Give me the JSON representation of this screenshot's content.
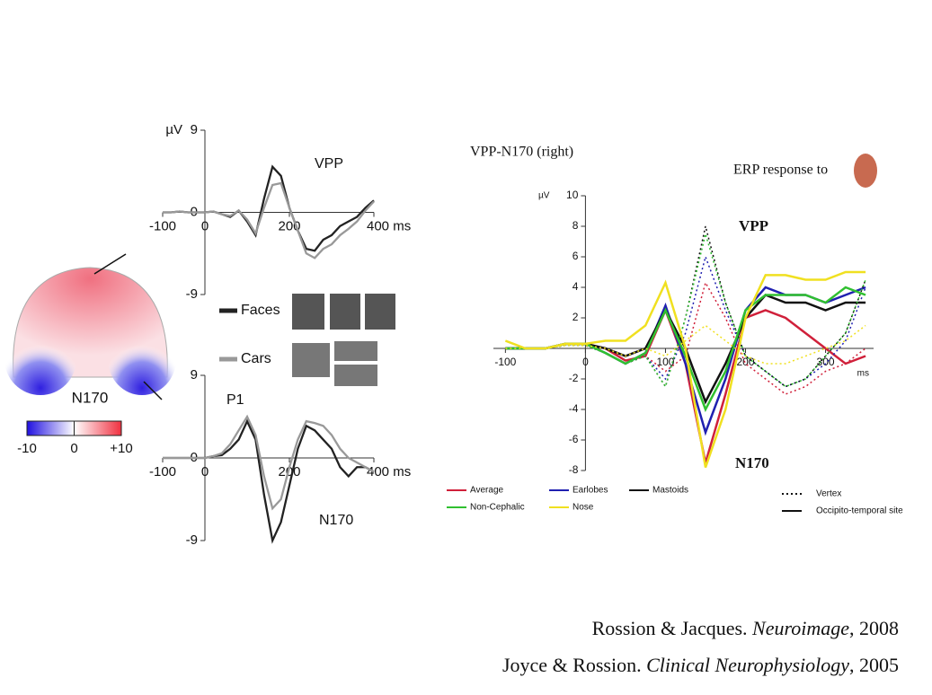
{
  "chart_data": [
    {
      "type": "line",
      "ylabel": "µV",
      "annotations": [
        "VPP"
      ],
      "x": [
        -100,
        -80,
        -60,
        -40,
        -20,
        0,
        20,
        40,
        60,
        80,
        100,
        120,
        140,
        160,
        180,
        200,
        220,
        240,
        260,
        280,
        300,
        320,
        340,
        360,
        380,
        400
      ],
      "xlim": [
        -100,
        400
      ],
      "xticks": [
        -100,
        0,
        200,
        {
          "value": 400,
          "label": "400 ms"
        }
      ],
      "ylim": [
        -9,
        9
      ],
      "yticks": [
        9,
        0,
        -9
      ],
      "series": [
        {
          "name": "Faces",
          "color": "#222222",
          "values": [
            0,
            0,
            0.1,
            0,
            0,
            0,
            0.1,
            -0.2,
            -0.5,
            0.2,
            -1,
            -2.5,
            1.5,
            5,
            4,
            0.5,
            -2,
            -4,
            -4.2,
            -3,
            -2.5,
            -1.5,
            -1,
            -0.5,
            0.5,
            1.3
          ]
        },
        {
          "name": "Cars",
          "color": "#999999",
          "values": [
            0,
            0,
            0.1,
            0,
            0,
            0,
            0.1,
            -0.2,
            -0.4,
            0.2,
            -0.8,
            -2.3,
            0.5,
            3,
            3.2,
            0.5,
            -2,
            -4.5,
            -5,
            -4,
            -3.5,
            -2.5,
            -1.8,
            -1,
            0.2,
            1.2
          ]
        }
      ]
    },
    {
      "type": "line",
      "annotations": [
        "P1",
        "N170"
      ],
      "x": [
        -100,
        -80,
        -60,
        -40,
        -20,
        0,
        20,
        40,
        60,
        80,
        100,
        120,
        140,
        160,
        180,
        200,
        220,
        240,
        260,
        280,
        300,
        320,
        340,
        360,
        380,
        400
      ],
      "xlim": [
        -100,
        400
      ],
      "xticks": [
        -100,
        0,
        200,
        {
          "value": 400,
          "label": "400 ms"
        }
      ],
      "ylim": [
        -9,
        9
      ],
      "yticks": [
        9,
        0,
        -9
      ],
      "series": [
        {
          "color": "#222222",
          "values": [
            0,
            0,
            0,
            0,
            0,
            0,
            0.2,
            0.3,
            1,
            2,
            4,
            2,
            -4,
            -9,
            -7,
            -3,
            1,
            3.5,
            3,
            2,
            1,
            -1,
            -2,
            -1,
            -1,
            -1.5
          ]
        },
        {
          "color": "#999999",
          "values": [
            0,
            0,
            0,
            0,
            0,
            0,
            0.2,
            0.5,
            1.5,
            3,
            4.5,
            2.5,
            -2,
            -5.5,
            -4.5,
            -1,
            2,
            4,
            3.8,
            3.5,
            2.5,
            1,
            0,
            -0.5,
            -1,
            -1.5
          ]
        }
      ]
    },
    {
      "type": "line",
      "title": "VPP-N170 (right)",
      "note": "ERP response to",
      "ylabel": "µV",
      "xlabel": "ms",
      "annotations": [
        "VPP",
        "N170"
      ],
      "x": [
        -100,
        -75,
        -50,
        -25,
        0,
        25,
        50,
        75,
        100,
        125,
        150,
        175,
        200,
        225,
        250,
        275,
        300,
        325,
        350
      ],
      "xlim": [
        -115,
        360
      ],
      "xticks": [
        -100,
        0,
        100,
        200,
        300
      ],
      "ylim": [
        -8,
        10
      ],
      "yticks": [
        10,
        8,
        6,
        4,
        2,
        -2,
        -4,
        -6,
        -8
      ],
      "line_styles": [
        {
          "name": "Vertex",
          "dash": "2,3"
        },
        {
          "name": "Occipito-temporal site",
          "dash": "none"
        }
      ],
      "series": [
        {
          "name": "Average",
          "color": "#d0203a",
          "values": [
            0,
            0,
            0,
            0.3,
            0.3,
            0,
            -0.8,
            -0.5,
            2.5,
            -1,
            -7.5,
            -3,
            2,
            2.5,
            2,
            1,
            0,
            -1,
            -0.5
          ],
          "vertex": [
            0,
            0,
            0,
            0.2,
            0.2,
            -0.3,
            -1,
            -0.5,
            -1.5,
            -0.5,
            4.3,
            2,
            -1,
            -2,
            -3,
            -2.5,
            -1.5,
            -1,
            0
          ]
        },
        {
          "name": "Earlobes",
          "color": "#2020b0",
          "values": [
            0,
            0,
            0,
            0.3,
            0.3,
            -0.3,
            -1,
            -0.3,
            2.8,
            -1,
            -5.5,
            -2,
            2.5,
            4,
            3.5,
            3.5,
            3,
            3.5,
            4
          ],
          "vertex": [
            0,
            0,
            0,
            0.2,
            0.2,
            -0.3,
            -1,
            -0.5,
            -2,
            1,
            6,
            2.5,
            -0.5,
            -1.5,
            -2.5,
            -2,
            -1,
            0.5,
            4
          ]
        },
        {
          "name": "Mastoids",
          "color": "#111111",
          "values": [
            0,
            0,
            0,
            0.3,
            0.3,
            0,
            -0.5,
            0,
            2.5,
            0,
            -3.5,
            -1,
            2,
            3.5,
            3,
            3,
            2.5,
            3,
            3
          ],
          "vertex": [
            0,
            0,
            0,
            0.2,
            0.2,
            -0.3,
            -1,
            -0.5,
            -2.5,
            2,
            8,
            3,
            -0.5,
            -1.5,
            -2.5,
            -2,
            -0.5,
            1,
            4.5
          ]
        },
        {
          "name": "Non-Cephalic",
          "color": "#30c030",
          "values": [
            0,
            0,
            0,
            0.3,
            0.3,
            -0.3,
            -1,
            -0.3,
            2.5,
            -0.5,
            -4,
            -1.5,
            2.5,
            3.5,
            3.5,
            3.5,
            3,
            4,
            3.5
          ],
          "vertex": [
            0,
            0,
            0,
            0.2,
            0.2,
            -0.3,
            -1,
            -0.5,
            -2.5,
            2,
            7.5,
            3,
            -0.5,
            -1.5,
            -2.5,
            -2,
            -0.5,
            1,
            4.5
          ]
        },
        {
          "name": "Nose",
          "color": "#f0e020",
          "values": [
            0.5,
            0,
            0,
            0.3,
            0.3,
            0.5,
            0.5,
            1.5,
            4.3,
            0,
            -7.8,
            -4,
            2,
            4.8,
            4.8,
            4.5,
            4.5,
            5,
            5
          ],
          "vertex": [
            0,
            0,
            0,
            0.2,
            0.2,
            0,
            -0.5,
            0,
            -0.5,
            0.5,
            1.5,
            0.5,
            -0.5,
            -1,
            -1,
            -0.5,
            0,
            0.5,
            1.5
          ]
        }
      ]
    }
  ],
  "topomap": {
    "title": "N170",
    "colorbar": {
      "lim": [
        -10,
        10
      ],
      "ticks": [
        -10,
        0,
        {
          "value": 10,
          "label": "+10"
        }
      ]
    }
  },
  "citations": [
    {
      "authors": "Rossion & Jacques.",
      "journal": "Neuroimage",
      "tail": ", 2008"
    },
    {
      "authors": "Joyce & Rossion.",
      "journal": "Clinical Neurophysiology",
      "tail": ", 2005"
    }
  ]
}
